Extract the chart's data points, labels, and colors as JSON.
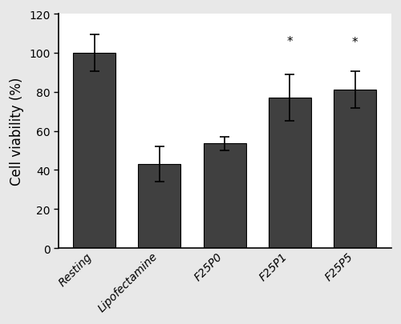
{
  "categories": [
    "Resting",
    "Lipofectamine",
    "F25P0",
    "F25P1",
    "F25P5"
  ],
  "values": [
    100.0,
    43.0,
    53.5,
    77.0,
    81.0
  ],
  "errors": [
    9.5,
    9.0,
    3.5,
    12.0,
    9.5
  ],
  "bar_color": "#404040",
  "ylabel": "Cell viability (%)",
  "ylim": [
    0,
    120
  ],
  "yticks": [
    0,
    20,
    40,
    60,
    80,
    100,
    120
  ],
  "asterisk_indices": [
    3,
    4
  ],
  "figure_width": 5.0,
  "figure_height": 4.06,
  "dpi": 100,
  "outer_bg": "#e8e8e8",
  "inner_bg": "#ffffff"
}
